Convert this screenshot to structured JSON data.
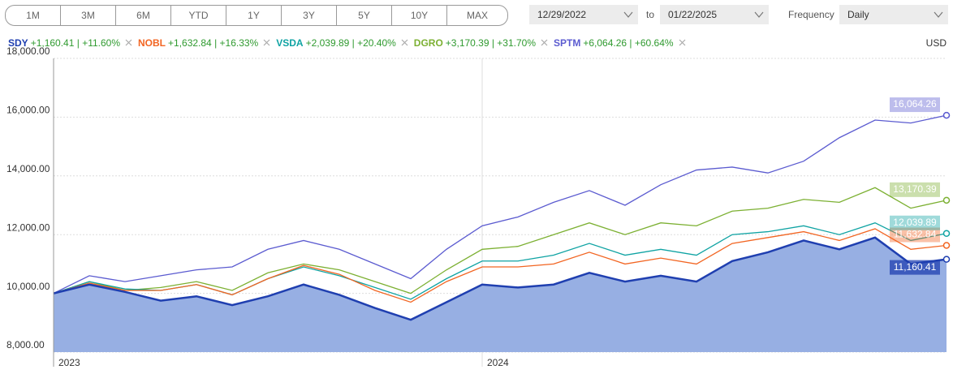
{
  "controls": {
    "ranges": [
      "1M",
      "3M",
      "6M",
      "YTD",
      "1Y",
      "3Y",
      "5Y",
      "10Y",
      "MAX"
    ],
    "start_date": "12/29/2022",
    "to": "to",
    "end_date": "01/22/2025",
    "frequency_label": "Frequency",
    "frequency": "Daily",
    "currency": "USD"
  },
  "chart_data": {
    "type": "line",
    "categories": [
      "2023",
      null,
      null,
      null,
      null,
      null,
      null,
      null,
      null,
      null,
      null,
      null,
      "2024",
      null,
      null,
      null,
      null,
      null,
      null,
      null,
      null,
      null,
      null,
      null,
      null,
      null
    ],
    "ylim": [
      8000,
      18000
    ],
    "yticks": [
      {
        "value": 8000,
        "label": "8,000.00"
      },
      {
        "value": 10000,
        "label": "10,000.00"
      },
      {
        "value": 12000,
        "label": "12,000.00"
      },
      {
        "value": 14000,
        "label": "14,000.00"
      },
      {
        "value": 16000,
        "label": "16,000.00"
      },
      {
        "value": 18000,
        "label": "18,000.00"
      }
    ],
    "grid": true,
    "series": [
      {
        "name": "SDY",
        "legend_value": "+1,160.41 | +11.60%",
        "color": "#1f3fb0",
        "area": true,
        "area_color": "#97afe3",
        "values": [
          10000,
          10300,
          10050,
          9750,
          9900,
          9600,
          9900,
          10300,
          9950,
          9500,
          9100,
          9700,
          10300,
          10200,
          10300,
          10700,
          10400,
          10600,
          10400,
          11100,
          11400,
          11800,
          11500,
          11900,
          11000,
          11160.41
        ],
        "value_labels": [
          null,
          null,
          null,
          null,
          null,
          null,
          null,
          null,
          null,
          null,
          null,
          null,
          null,
          null,
          null,
          null,
          null,
          null,
          null,
          null,
          null,
          null,
          null,
          null,
          null,
          "11,160.41"
        ]
      },
      {
        "name": "NOBL",
        "legend_value": "+1,632.84 | +16.33%",
        "color": "#f26522",
        "values": [
          10000,
          10350,
          10100,
          10100,
          10300,
          9950,
          10500,
          10950,
          10650,
          10100,
          9700,
          10400,
          10900,
          10900,
          11000,
          11400,
          11000,
          11200,
          11000,
          11700,
          11900,
          12100,
          11800,
          12200,
          11500,
          11632.84
        ],
        "value_labels": [
          null,
          null,
          null,
          null,
          null,
          null,
          null,
          null,
          null,
          null,
          null,
          null,
          null,
          null,
          null,
          null,
          null,
          null,
          null,
          null,
          null,
          null,
          null,
          null,
          null,
          "11,632.84"
        ]
      },
      {
        "name": "VSDA",
        "legend_value": "+2,039.89 | +20.40%",
        "color": "#0fa3a3",
        "values": [
          10000,
          10400,
          10150,
          10100,
          10300,
          9950,
          10500,
          10900,
          10600,
          10200,
          9800,
          10500,
          11100,
          11100,
          11300,
          11700,
          11300,
          11500,
          11300,
          12000,
          12100,
          12300,
          12000,
          12400,
          11800,
          12039.89
        ],
        "value_labels": [
          null,
          null,
          null,
          null,
          null,
          null,
          null,
          null,
          null,
          null,
          null,
          null,
          null,
          null,
          null,
          null,
          null,
          null,
          null,
          null,
          null,
          null,
          null,
          null,
          null,
          "12,039.89"
        ]
      },
      {
        "name": "DGRO",
        "legend_value": "+3,170.39 | +31.70%",
        "color": "#7cb032",
        "values": [
          10000,
          10400,
          10100,
          10200,
          10400,
          10100,
          10700,
          11000,
          10800,
          10400,
          10000,
          10800,
          11500,
          11600,
          12000,
          12400,
          12000,
          12400,
          12300,
          12800,
          12900,
          13200,
          13100,
          13600,
          12900,
          13170.39
        ],
        "value_labels": [
          null,
          null,
          null,
          null,
          null,
          null,
          null,
          null,
          null,
          null,
          null,
          null,
          null,
          null,
          null,
          null,
          null,
          null,
          null,
          null,
          null,
          null,
          null,
          null,
          null,
          "13,170.39"
        ]
      },
      {
        "name": "SPTM",
        "legend_value": "+6,064.26 | +60.64%",
        "color": "#5b5bd0",
        "values": [
          10000,
          10600,
          10400,
          10600,
          10800,
          10900,
          11500,
          11800,
          11500,
          11000,
          10500,
          11500,
          12300,
          12600,
          13100,
          13500,
          13000,
          13700,
          14200,
          14300,
          14100,
          14500,
          15300,
          15900,
          15800,
          16064.26
        ],
        "value_labels": [
          null,
          null,
          null,
          null,
          null,
          null,
          null,
          null,
          null,
          null,
          null,
          null,
          null,
          null,
          null,
          null,
          null,
          null,
          null,
          null,
          null,
          null,
          null,
          null,
          null,
          "16,064.26"
        ]
      }
    ]
  }
}
